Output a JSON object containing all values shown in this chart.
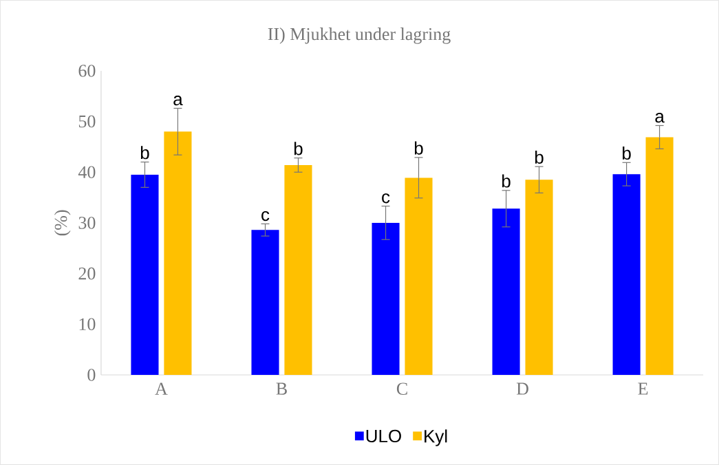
{
  "chart_data": {
    "type": "bar",
    "title": "II) Mjukhet under lagring",
    "ylabel": "(%)",
    "categories": [
      "A",
      "B",
      "C",
      "D",
      "E"
    ],
    "series": [
      {
        "name": "ULO",
        "color": "#0000ff",
        "values": [
          39.5,
          28.6,
          30.0,
          32.8,
          39.6
        ],
        "errors": [
          2.5,
          1.2,
          3.3,
          3.6,
          2.3
        ]
      },
      {
        "name": "Kyl",
        "color": "#ffc000",
        "values": [
          48.0,
          41.4,
          38.9,
          38.5,
          46.9
        ],
        "errors": [
          4.6,
          1.4,
          4.0,
          2.6,
          2.3
        ]
      }
    ],
    "ylim": [
      0,
      60
    ],
    "yticks": [
      0,
      10,
      20,
      30,
      40,
      50,
      60
    ],
    "legend": "bottom",
    "annotations": [
      "b",
      "a",
      "c",
      "b",
      "c",
      "b",
      "b",
      "b",
      "b",
      "a"
    ]
  }
}
